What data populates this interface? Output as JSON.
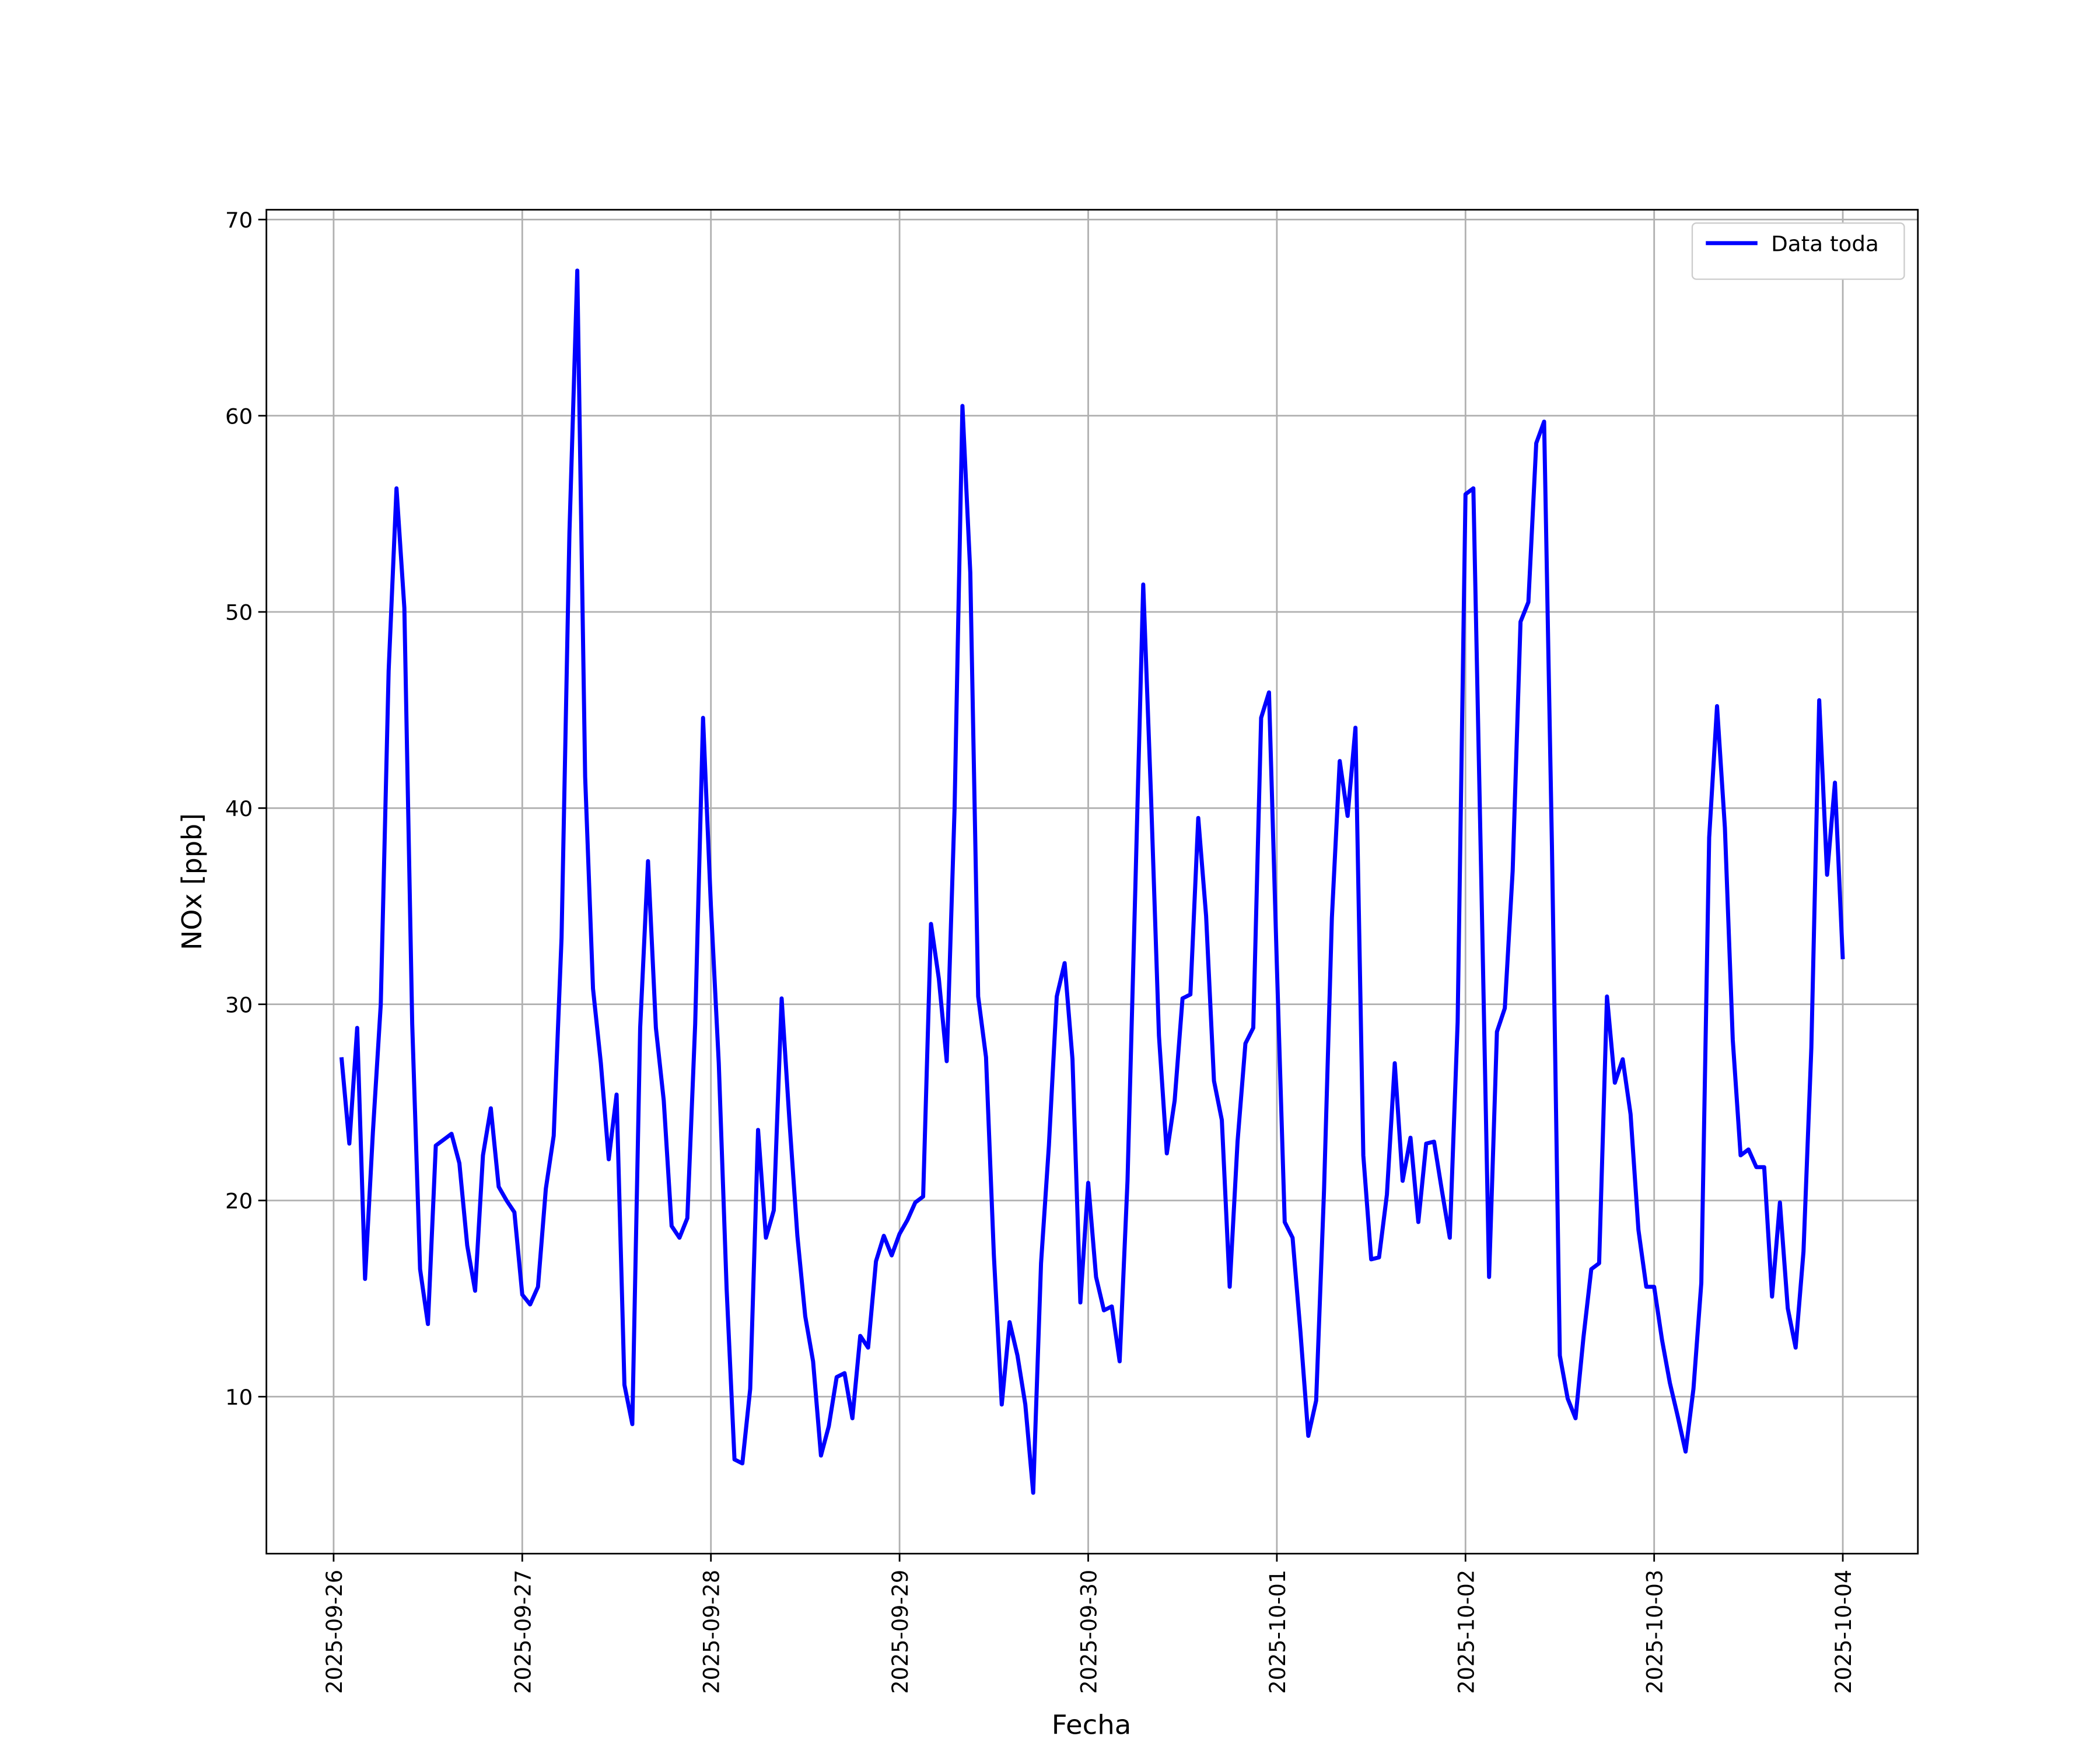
{
  "chart_data": {
    "type": "line",
    "xlabel": "Fecha",
    "ylabel": "NOx [ppb]",
    "x": [
      "2025-09-26 01:00",
      "2025-09-26 02:00",
      "2025-09-26 03:00",
      "2025-09-26 04:00",
      "2025-09-26 05:00",
      "2025-09-26 06:00",
      "2025-09-26 07:00",
      "2025-09-26 08:00",
      "2025-09-26 09:00",
      "2025-09-26 10:00",
      "2025-09-26 11:00",
      "2025-09-26 12:00",
      "2025-09-26 13:00",
      "2025-09-26 14:00",
      "2025-09-26 15:00",
      "2025-09-26 16:00",
      "2025-09-26 17:00",
      "2025-09-26 18:00",
      "2025-09-26 19:00",
      "2025-09-26 20:00",
      "2025-09-26 21:00",
      "2025-09-26 22:00",
      "2025-09-26 23:00",
      "2025-09-27 00:00",
      "2025-09-27 01:00",
      "2025-09-27 02:00",
      "2025-09-27 03:00",
      "2025-09-27 04:00",
      "2025-09-27 05:00",
      "2025-09-27 06:00",
      "2025-09-27 07:00",
      "2025-09-27 08:00",
      "2025-09-27 09:00",
      "2025-09-27 10:00",
      "2025-09-27 11:00",
      "2025-09-27 12:00",
      "2025-09-27 13:00",
      "2025-09-27 14:00",
      "2025-09-27 15:00",
      "2025-09-27 16:00",
      "2025-09-27 17:00",
      "2025-09-27 18:00",
      "2025-09-27 19:00",
      "2025-09-27 20:00",
      "2025-09-27 21:00",
      "2025-09-27 22:00",
      "2025-09-27 23:00",
      "2025-09-28 00:00",
      "2025-09-28 01:00",
      "2025-09-28 02:00",
      "2025-09-28 03:00",
      "2025-09-28 04:00",
      "2025-09-28 05:00",
      "2025-09-28 06:00",
      "2025-09-28 07:00",
      "2025-09-28 08:00",
      "2025-09-28 09:00",
      "2025-09-28 10:00",
      "2025-09-28 11:00",
      "2025-09-28 12:00",
      "2025-09-28 13:00",
      "2025-09-28 14:00",
      "2025-09-28 15:00",
      "2025-09-28 16:00",
      "2025-09-28 17:00",
      "2025-09-28 18:00",
      "2025-09-28 19:00",
      "2025-09-28 20:00",
      "2025-09-28 21:00",
      "2025-09-28 22:00",
      "2025-09-28 23:00",
      "2025-09-29 00:00",
      "2025-09-29 01:00",
      "2025-09-29 02:00",
      "2025-09-29 03:00",
      "2025-09-29 04:00",
      "2025-09-29 05:00",
      "2025-09-29 06:00",
      "2025-09-29 07:00",
      "2025-09-29 08:00",
      "2025-09-29 09:00",
      "2025-09-29 10:00",
      "2025-09-29 11:00",
      "2025-09-29 12:00",
      "2025-09-29 13:00",
      "2025-09-29 14:00",
      "2025-09-29 15:00",
      "2025-09-29 16:00",
      "2025-09-29 17:00",
      "2025-09-29 18:00",
      "2025-09-29 19:00",
      "2025-09-29 20:00",
      "2025-09-29 21:00",
      "2025-09-29 22:00",
      "2025-09-29 23:00",
      "2025-09-30 00:00",
      "2025-09-30 01:00",
      "2025-09-30 02:00",
      "2025-09-30 03:00",
      "2025-09-30 04:00",
      "2025-09-30 05:00",
      "2025-09-30 06:00",
      "2025-09-30 07:00",
      "2025-09-30 08:00",
      "2025-09-30 09:00",
      "2025-09-30 10:00",
      "2025-09-30 11:00",
      "2025-09-30 12:00",
      "2025-09-30 13:00",
      "2025-09-30 14:00",
      "2025-09-30 15:00",
      "2025-09-30 16:00",
      "2025-09-30 17:00",
      "2025-09-30 18:00",
      "2025-09-30 19:00",
      "2025-09-30 20:00",
      "2025-09-30 21:00",
      "2025-09-30 22:00",
      "2025-09-30 23:00",
      "2025-10-01 00:00",
      "2025-10-01 01:00",
      "2025-10-01 02:00",
      "2025-10-01 03:00",
      "2025-10-01 04:00",
      "2025-10-01 05:00",
      "2025-10-01 06:00",
      "2025-10-01 07:00",
      "2025-10-01 08:00",
      "2025-10-01 09:00",
      "2025-10-01 10:00",
      "2025-10-01 11:00",
      "2025-10-01 12:00",
      "2025-10-01 13:00",
      "2025-10-01 14:00",
      "2025-10-01 15:00",
      "2025-10-01 16:00",
      "2025-10-01 17:00",
      "2025-10-01 18:00",
      "2025-10-01 19:00",
      "2025-10-01 20:00",
      "2025-10-01 21:00",
      "2025-10-01 22:00",
      "2025-10-01 23:00",
      "2025-10-02 00:00",
      "2025-10-02 01:00",
      "2025-10-02 02:00",
      "2025-10-02 03:00",
      "2025-10-02 04:00",
      "2025-10-02 05:00",
      "2025-10-02 06:00",
      "2025-10-02 07:00",
      "2025-10-02 08:00",
      "2025-10-02 09:00",
      "2025-10-02 10:00",
      "2025-10-02 11:00",
      "2025-10-02 12:00",
      "2025-10-02 13:00",
      "2025-10-02 14:00",
      "2025-10-02 15:00",
      "2025-10-02 16:00",
      "2025-10-02 17:00",
      "2025-10-02 18:00",
      "2025-10-02 19:00",
      "2025-10-02 20:00",
      "2025-10-02 21:00",
      "2025-10-02 22:00",
      "2025-10-02 23:00",
      "2025-10-03 00:00",
      "2025-10-03 01:00",
      "2025-10-03 02:00",
      "2025-10-03 03:00",
      "2025-10-03 04:00",
      "2025-10-03 05:00",
      "2025-10-03 06:00",
      "2025-10-03 07:00",
      "2025-10-03 08:00",
      "2025-10-03 09:00",
      "2025-10-03 10:00",
      "2025-10-03 11:00",
      "2025-10-03 12:00",
      "2025-10-03 13:00",
      "2025-10-03 14:00",
      "2025-10-03 15:00",
      "2025-10-03 16:00",
      "2025-10-03 17:00",
      "2025-10-03 18:00",
      "2025-10-03 19:00",
      "2025-10-03 20:00",
      "2025-10-03 21:00",
      "2025-10-03 22:00",
      "2025-10-03 23:00",
      "2025-10-04 00:00"
    ],
    "series": [
      {
        "name": "Data toda",
        "color": "#0000ff",
        "values": [
          27.3,
          22.9,
          28.8,
          16.0,
          23.5,
          30,
          47,
          56.3,
          50.2,
          29,
          16.5,
          13.7,
          22.8,
          23.1,
          23.4,
          21.9,
          17.7,
          15.4,
          22.3,
          24.7,
          20.7,
          20.0,
          19.4,
          15.2,
          14.7,
          15.6,
          20.6,
          23.3,
          33.4,
          54,
          67.4,
          41.6,
          30.8,
          27.0,
          22.1,
          25.4,
          10.6,
          8.6,
          28.8,
          37.3,
          28.8,
          25.1,
          18.7,
          18.1,
          19.1,
          29,
          44.6,
          35,
          27,
          15.5,
          6.8,
          6.6,
          10.4,
          23.6,
          18.1,
          19.5,
          30.3,
          24,
          18.2,
          14.1,
          11.8,
          7.0,
          8.5,
          11.0,
          11.2,
          8.9,
          13.1,
          12.5,
          16.9,
          18.2,
          17.2,
          18.3,
          19.0,
          19.9,
          20.2,
          34.1,
          31.3,
          27.1,
          40,
          60.5,
          52,
          30.4,
          27.3,
          17.2,
          9.6,
          13.8,
          12.1,
          9.6,
          5.1,
          16.8,
          22.8,
          30.4,
          32.1,
          27.2,
          14.8,
          20.9,
          16.1,
          14.4,
          14.6,
          11.8,
          21,
          36,
          51.4,
          40.5,
          28.4,
          22.4,
          25.1,
          30.3,
          30.5,
          39.5,
          34.5,
          26.1,
          24.1,
          15.6,
          23,
          28,
          28.8,
          44.6,
          45.9,
          32,
          18.9,
          18.1,
          13.3,
          8.0,
          9.8,
          20.5,
          34.4,
          42.4,
          39.6,
          44.1,
          22.3,
          17.0,
          17.1,
          20.3,
          27.0,
          21.0,
          23.2,
          18.9,
          22.9,
          23.0,
          20.5,
          18.1,
          29.1,
          56.0,
          56.3,
          36.5,
          16.1,
          28.6,
          29.8,
          36.8,
          49.5,
          50.5,
          58.6,
          59.7,
          38,
          12.1,
          9.9,
          8.9,
          13.0,
          16.5,
          16.8,
          30.4,
          26.0,
          27.2,
          24.4,
          18.5,
          15.6,
          15.6,
          12.9,
          10.7,
          9.0,
          7.2,
          10.4,
          15.8,
          38.5,
          45.2,
          39,
          28.2,
          22.3,
          22.6,
          21.7,
          21.7,
          15.1,
          19.9,
          14.5,
          12.5,
          17.4,
          27.8,
          45.5,
          36.6,
          41.3,
          32.3
        ]
      }
    ],
    "xlim": [
      "2025-09-25 15:27",
      "2025-10-04 09:33"
    ],
    "xticks": [
      "2025-09-26",
      "2025-09-27",
      "2025-09-28",
      "2025-09-29",
      "2025-09-30",
      "2025-10-01",
      "2025-10-02",
      "2025-10-03",
      "2025-10-04"
    ],
    "ylim": [
      2.0,
      70.5
    ],
    "yticks": [
      10,
      20,
      30,
      40,
      50,
      60,
      70
    ],
    "grid": true,
    "legend": "upper right"
  }
}
